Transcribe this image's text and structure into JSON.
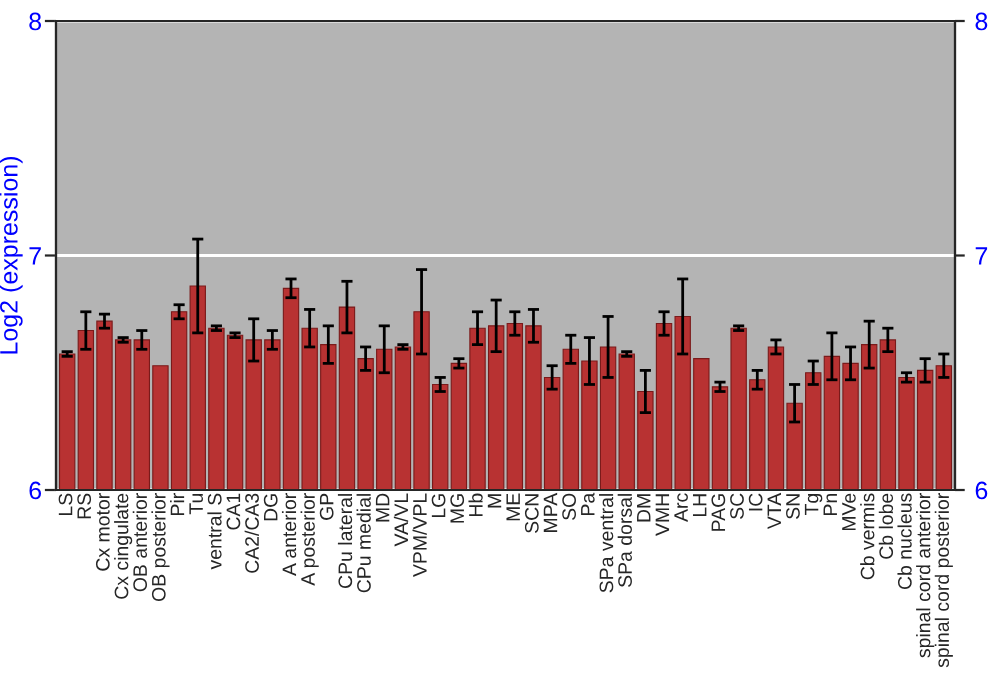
{
  "chart_data": {
    "type": "bar",
    "ylabel": "Log2 (expression)",
    "categories": [
      "LS",
      "RS",
      "Cx motor",
      "Cx cingulate",
      "OB anterior",
      "OB posterior",
      "Pir",
      "Tu",
      "ventral S",
      "CA1",
      "CA2/CA3",
      "DG",
      "A anterior",
      "A posterior",
      "GP",
      "CPu lateral",
      "CPu medial",
      "MD",
      "VA/VL",
      "VPM/VPL",
      "LG",
      "MG",
      "Hb",
      "M",
      "ME",
      "SCN",
      "MPA",
      "SO",
      "Pa",
      "SPa ventral",
      "SPa dorsal",
      "DM",
      "VMH",
      "Arc",
      "LH",
      "PAG",
      "SC",
      "IC",
      "VTA",
      "SN",
      "Tg",
      "Pn",
      "MVe",
      "Cb vermis",
      "Cb lobe",
      "Cb nucleus",
      "spinal cord anterior",
      "spinal cord posterior"
    ],
    "values": [
      6.58,
      6.68,
      6.72,
      6.64,
      6.64,
      6.53,
      6.76,
      6.87,
      6.69,
      6.66,
      6.64,
      6.64,
      6.86,
      6.69,
      6.62,
      6.78,
      6.56,
      6.6,
      6.61,
      6.76,
      6.45,
      6.54,
      6.69,
      6.7,
      6.71,
      6.7,
      6.48,
      6.6,
      6.55,
      6.61,
      6.58,
      6.42,
      6.71,
      6.74,
      6.56,
      6.44,
      6.69,
      6.47,
      6.61,
      6.37,
      6.5,
      6.57,
      6.54,
      6.62,
      6.64,
      6.48,
      6.51,
      6.53
    ],
    "errors": [
      0.01,
      0.08,
      0.03,
      0.01,
      0.04,
      null,
      0.03,
      0.2,
      0.01,
      0.01,
      0.09,
      0.04,
      0.04,
      0.08,
      0.08,
      0.11,
      0.05,
      0.1,
      0.01,
      0.18,
      0.03,
      0.02,
      0.07,
      0.11,
      0.05,
      0.07,
      0.05,
      0.06,
      0.1,
      0.13,
      0.01,
      0.09,
      0.05,
      0.16,
      null,
      0.02,
      0.01,
      0.04,
      0.03,
      0.08,
      0.05,
      0.1,
      0.07,
      0.1,
      0.05,
      0.02,
      0.05,
      0.05
    ],
    "color": "#b83232",
    "ylim": [
      6,
      8
    ],
    "yticks": [
      6,
      7,
      8
    ],
    "y2lim": [
      6,
      8
    ],
    "y2ticks": [
      6,
      7,
      8
    ],
    "grid": "y"
  }
}
